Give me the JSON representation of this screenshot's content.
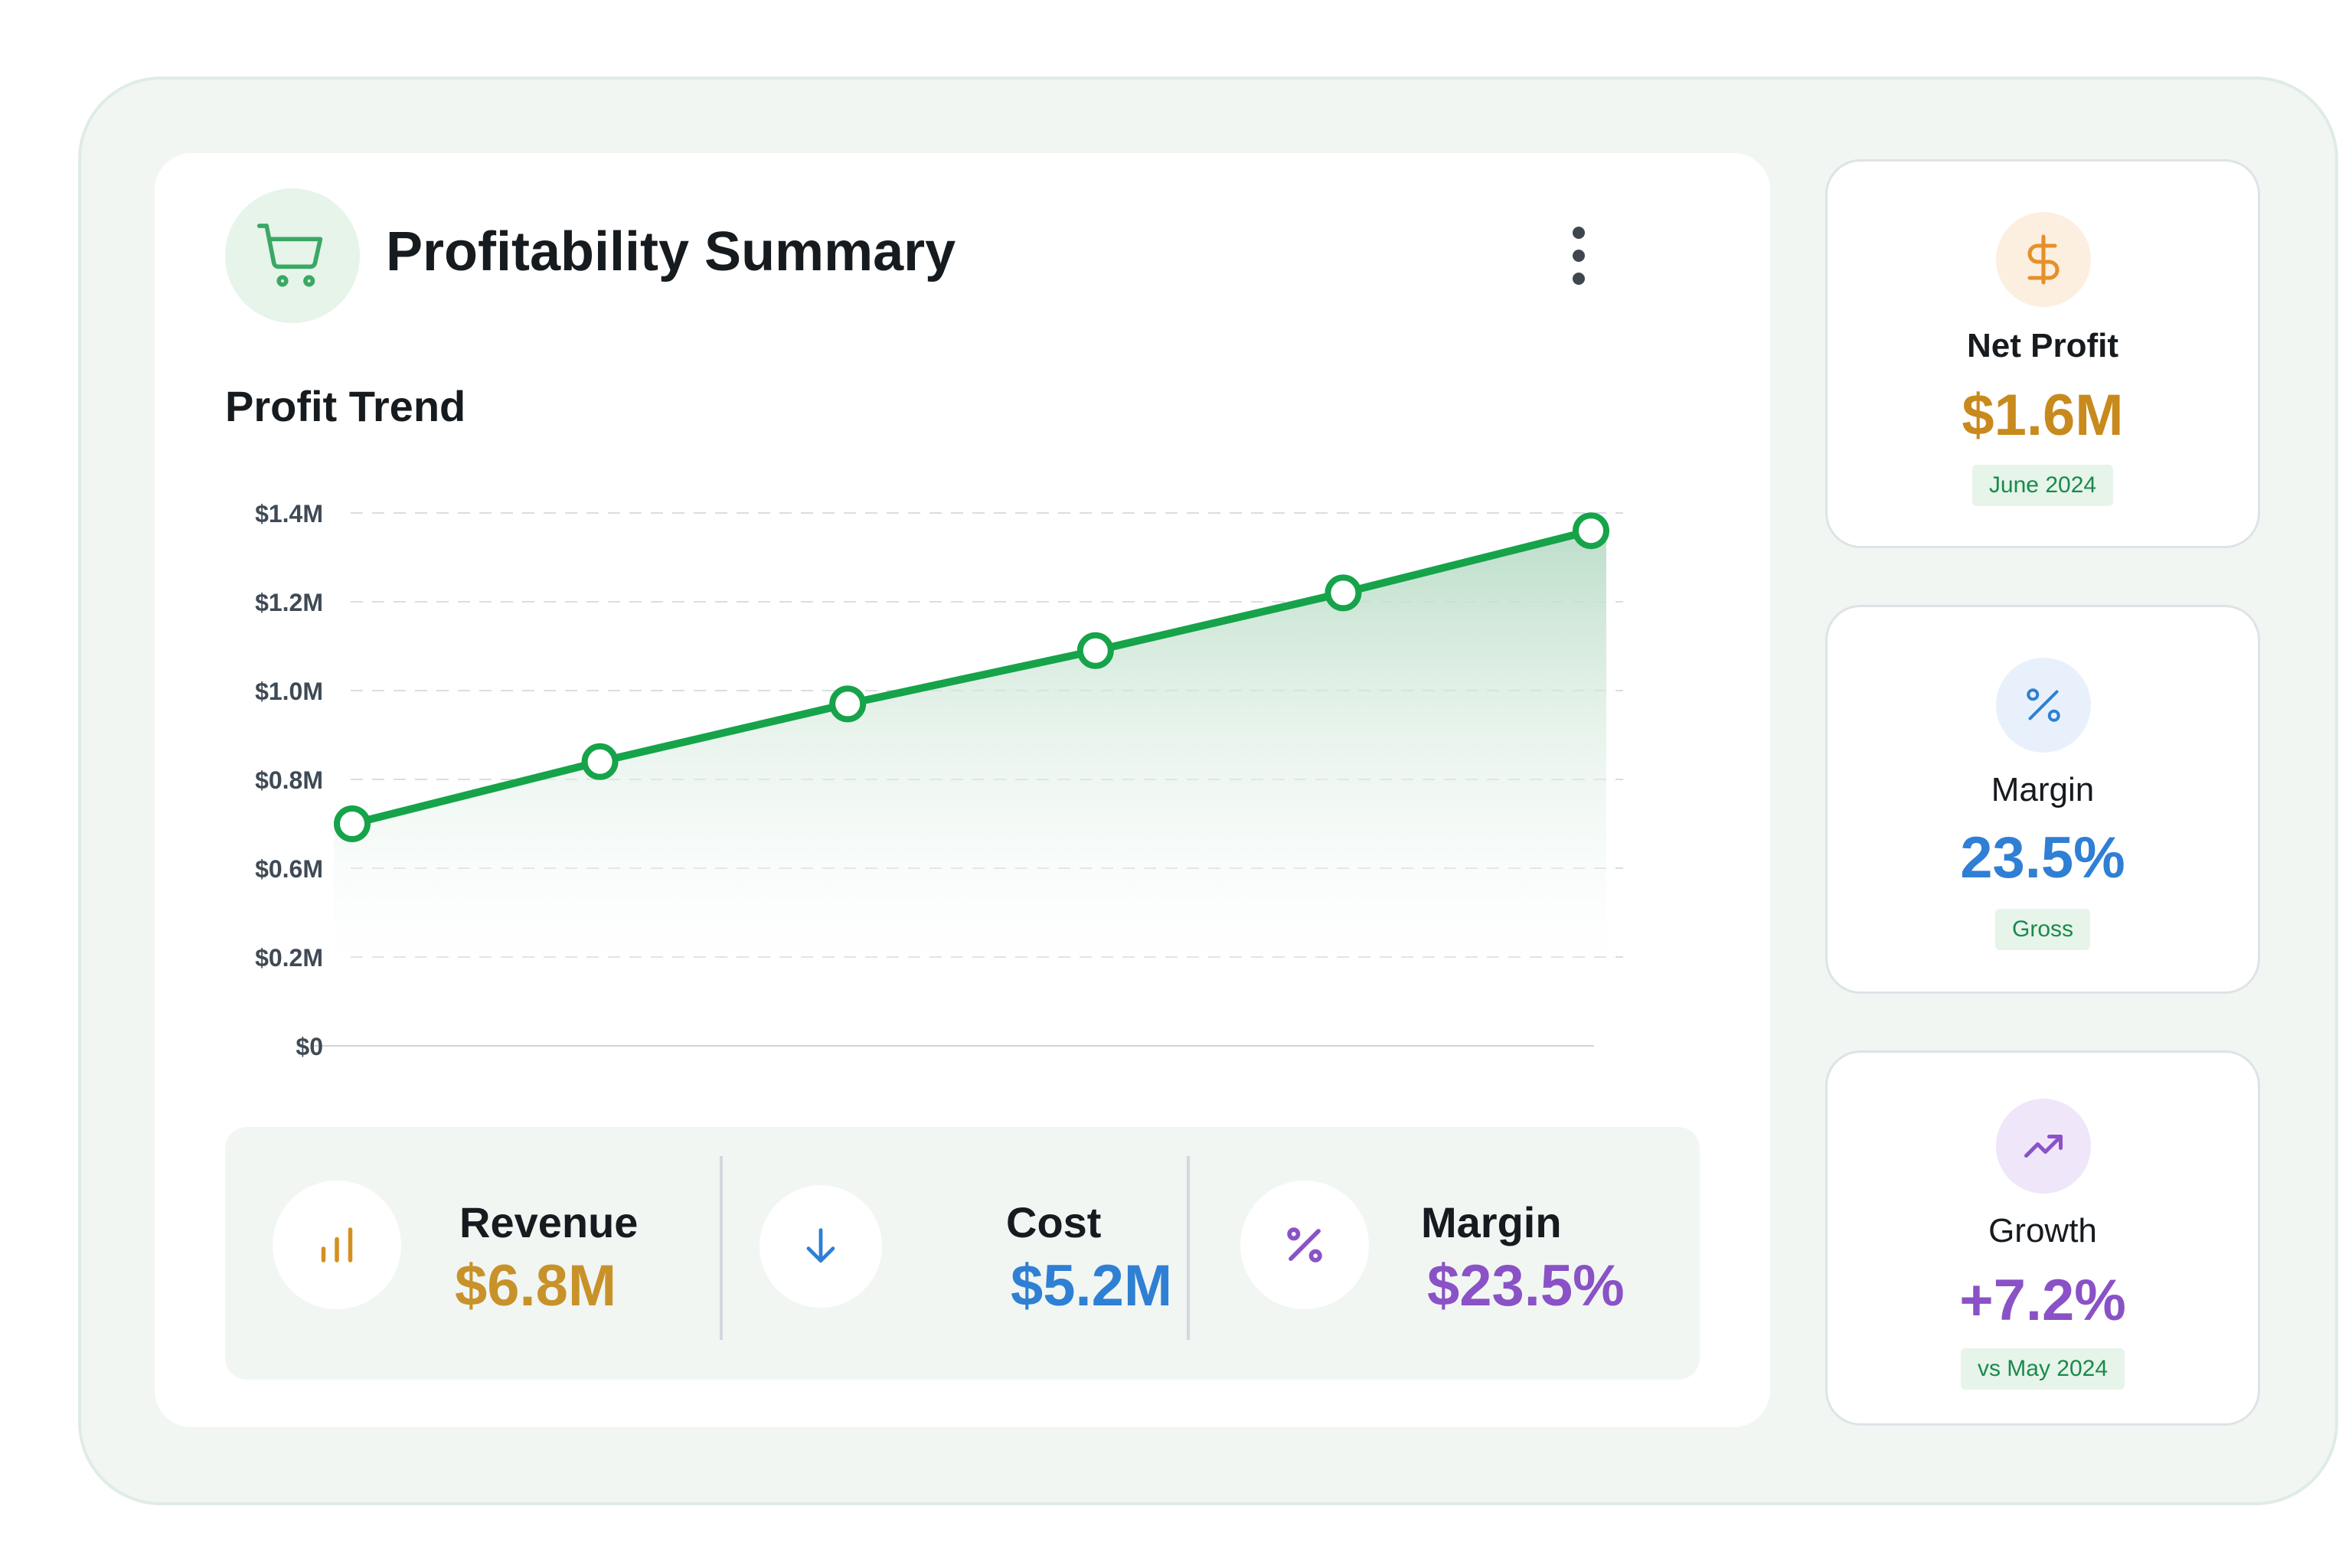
{
  "header": {
    "title": "Profitability Summary",
    "icon": "shopping-cart-icon",
    "menu_icon": "more-vertical-icon"
  },
  "chart_section": {
    "title": "Profit Trend"
  },
  "chart_data": {
    "type": "area",
    "title": "Profit Trend",
    "xlabel": "",
    "ylabel": "",
    "y_tick_labels": [
      "$1.4M",
      "$1.2M",
      "$1.0M",
      "$0.8M",
      "$0.6M",
      "$0.2M",
      "$0"
    ],
    "y_tick_values": [
      1.4,
      1.2,
      1.0,
      0.8,
      0.6,
      0.2,
      0
    ],
    "y_unit": "$M",
    "points": [
      0.7,
      0.84,
      0.97,
      1.09,
      1.22,
      1.36
    ],
    "grid": true,
    "line_color": "#16a34a",
    "fill_color": "#c8e6d2"
  },
  "stats": [
    {
      "label": "Revenue",
      "value": "$6.8M",
      "icon": "bar-chart-icon",
      "color": "#d4901e"
    },
    {
      "label": "Cost",
      "value": "$5.2M",
      "icon": "arrow-down-icon",
      "color": "#2f7fd4"
    },
    {
      "label": "Margin",
      "value": "$23.5%",
      "icon": "percent-icon",
      "color": "#8a52c6"
    }
  ],
  "kpis": [
    {
      "label": "Net Profit",
      "value": "$1.6M",
      "badge": "June 2024",
      "icon": "dollar-icon",
      "color": "#c88a1c",
      "icon_bg": "#fdefe0"
    },
    {
      "label": "Margin",
      "value": "23.5%",
      "badge": "Gross",
      "icon": "percent-icon",
      "color": "#2f7fd4",
      "icon_bg": "#e8f1fb"
    },
    {
      "label": "Growth",
      "value": "+7.2%",
      "badge": "vs May 2024",
      "icon": "trending-up-icon",
      "color": "#8a52c6",
      "icon_bg": "#efe6fa"
    }
  ]
}
